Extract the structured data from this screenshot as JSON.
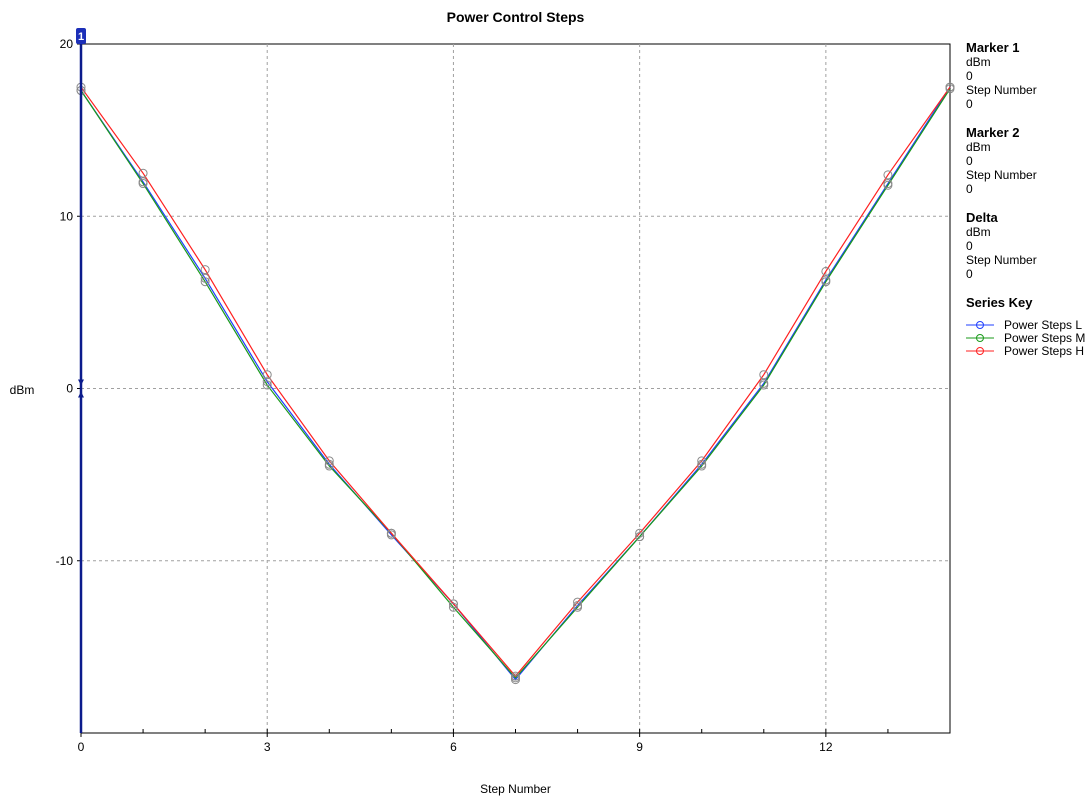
{
  "markers": [
    {
      "title": "Marker 1",
      "y_label": "dBm",
      "y_value": "0",
      "x_label": "Step Number",
      "x_value": "0"
    },
    {
      "title": "Marker 2",
      "y_label": "dBm",
      "y_value": "0",
      "x_label": "Step Number",
      "x_value": "0"
    },
    {
      "title": "Delta",
      "y_label": "dBm",
      "y_value": "0",
      "x_label": "Step Number",
      "x_value": "0"
    }
  ],
  "series_key_title": "Series Key",
  "marker_badge": "1",
  "colors": {
    "grid": "#a0a0a0",
    "marker_line": "#0b1b8c",
    "marker_badge": "#1c2fb8",
    "point_ring": "#8a8a8a"
  },
  "chart_data": {
    "type": "line",
    "title": "Power Control Steps",
    "xlabel": "Step Number",
    "ylabel": "dBm",
    "xlim": [
      0,
      14
    ],
    "ylim": [
      -20,
      20
    ],
    "x_ticks": [
      0,
      3,
      6,
      9,
      12
    ],
    "y_ticks": [
      20,
      10,
      0,
      -10
    ],
    "grid": true,
    "legend_position": "right",
    "x": [
      0,
      1,
      2,
      3,
      4,
      5,
      6,
      7,
      8,
      9,
      10,
      11,
      12,
      13,
      14
    ],
    "series": [
      {
        "name": "Power Steps L",
        "color": "#1f3fff",
        "values": [
          17.3,
          12.0,
          6.4,
          0.4,
          -4.4,
          -8.5,
          -12.5,
          -16.9,
          -12.6,
          -8.6,
          -4.4,
          0.3,
          6.3,
          11.9,
          17.5
        ]
      },
      {
        "name": "Power Steps M",
        "color": "#1a9a1a",
        "values": [
          17.3,
          11.9,
          6.2,
          0.2,
          -4.5,
          -8.4,
          -12.7,
          -16.8,
          -12.7,
          -8.6,
          -4.5,
          0.2,
          6.2,
          11.8,
          17.4
        ]
      },
      {
        "name": "Power Steps H",
        "color": "#ff2020",
        "values": [
          17.5,
          12.5,
          6.9,
          0.8,
          -4.2,
          -8.4,
          -12.5,
          -16.7,
          -12.4,
          -8.4,
          -4.2,
          0.8,
          6.8,
          12.4,
          17.5
        ]
      }
    ]
  }
}
